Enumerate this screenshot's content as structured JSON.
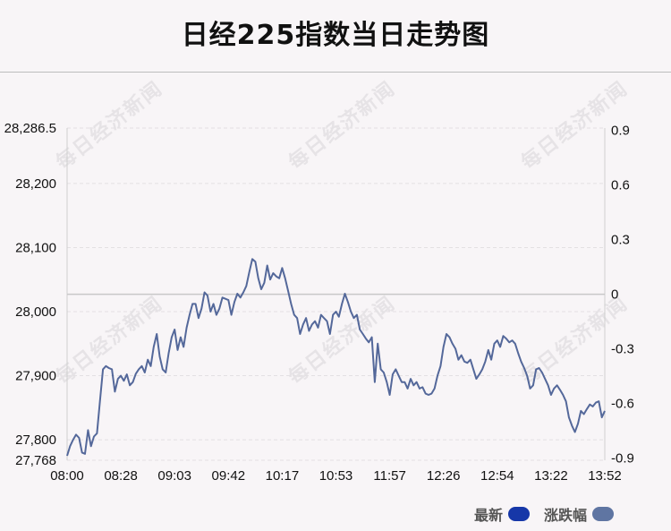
{
  "chart_data": {
    "type": "line",
    "title": "日经225指数当日走势图",
    "watermark": "每日经济新闻",
    "colors": {
      "line": "#54689a",
      "baseline": "#c8c8c8",
      "grid": "#e3e0e3",
      "latest_swatch": "#1637a8",
      "change_swatch": "#5f75a2"
    },
    "legend": {
      "position": "bottom-right",
      "items": [
        {
          "name": "最新",
          "color": "#1637a8"
        },
        {
          "name": "涨跌幅",
          "color": "#5f75a2"
        }
      ]
    },
    "grid": true,
    "x_ticks": [
      "08:00",
      "08:28",
      "09:03",
      "09:42",
      "10:17",
      "10:53",
      "11:57",
      "12:26",
      "12:54",
      "13:22",
      "13:52"
    ],
    "y_left": {
      "ylim": [
        27768,
        28286.5
      ],
      "ticks": [
        {
          "value": 28286.5,
          "label": "28,286.5"
        },
        {
          "value": 28200,
          "label": "28,200"
        },
        {
          "value": 28100,
          "label": "28,100"
        },
        {
          "value": 28000,
          "label": "28,000"
        },
        {
          "value": 27900,
          "label": "27,900"
        },
        {
          "value": 27800,
          "label": "27,800"
        },
        {
          "value": 27768,
          "label": "27,768"
        }
      ]
    },
    "y_right": {
      "ylim": [
        -0.912,
        0.912
      ],
      "ticks": [
        {
          "value": 0.9,
          "label": "0.9"
        },
        {
          "value": 0.6,
          "label": "0.6"
        },
        {
          "value": 0.3,
          "label": "0.3"
        },
        {
          "value": 0,
          "label": "0"
        },
        {
          "value": -0.3,
          "label": "-0.3"
        },
        {
          "value": -0.6,
          "label": "-0.6"
        },
        {
          "value": -0.9,
          "label": "-0.9"
        }
      ]
    },
    "reference_value": 28027,
    "series": [
      {
        "values": [
          27775,
          27790,
          27800,
          27808,
          27803,
          27780,
          27778,
          27815,
          27790,
          27805,
          27810,
          27860,
          27910,
          27915,
          27912,
          27910,
          27875,
          27895,
          27900,
          27892,
          27902,
          27885,
          27890,
          27903,
          27910,
          27915,
          27905,
          27925,
          27915,
          27945,
          27965,
          27930,
          27910,
          27905,
          27935,
          27960,
          27972,
          27940,
          27960,
          27945,
          27975,
          27995,
          28012,
          28012,
          27990,
          28005,
          28030,
          28025,
          28000,
          28012,
          27995,
          28005,
          28022,
          28020,
          28018,
          27995,
          28015,
          28028,
          28022,
          28030,
          28040,
          28062,
          28082,
          28078,
          28052,
          28035,
          28045,
          28072,
          28050,
          28060,
          28055,
          28052,
          28068,
          28052,
          28032,
          28012,
          27995,
          27990,
          27965,
          27980,
          27990,
          27970,
          27980,
          27985,
          27975,
          27995,
          27990,
          27985,
          27965,
          27995,
          28000,
          27992,
          28012,
          28028,
          28015,
          28000,
          27990,
          27995,
          27972,
          27965,
          27958,
          27952,
          27960,
          27890,
          27950,
          27910,
          27905,
          27890,
          27870,
          27902,
          27910,
          27900,
          27890,
          27890,
          27880,
          27895,
          27885,
          27890,
          27880,
          27882,
          27872,
          27870,
          27872,
          27880,
          27900,
          27915,
          27945,
          27965,
          27960,
          27950,
          27942,
          27925,
          27932,
          27922,
          27920,
          27925,
          27910,
          27895,
          27902,
          27910,
          27922,
          27940,
          27925,
          27950,
          27955,
          27945,
          27962,
          27958,
          27952,
          27955,
          27950,
          27935,
          27922,
          27912,
          27900,
          27880,
          27885,
          27910,
          27912,
          27905,
          27895,
          27885,
          27870,
          27880,
          27885,
          27878,
          27870,
          27860,
          27835,
          27822,
          27812,
          27825,
          27845,
          27840,
          27848,
          27855,
          27852,
          27858,
          27860,
          27835,
          27845
        ]
      }
    ]
  },
  "legend_labels": {
    "latest": "最新",
    "change": "涨跌幅"
  }
}
